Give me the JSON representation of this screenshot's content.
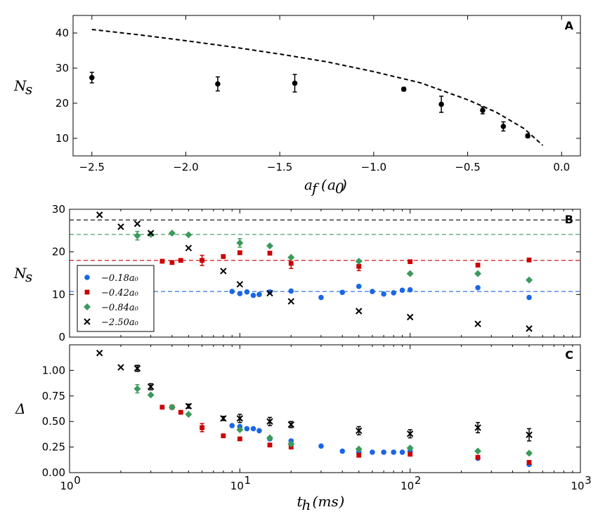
{
  "chart_data": [
    {
      "panel": "A",
      "type": "scatter",
      "xlabel": "a_f (a_0)",
      "ylabel": "N_s",
      "xlim": [
        -2.6,
        0.1
      ],
      "ylim": [
        5,
        45
      ],
      "xticks": [
        -2.5,
        -2.0,
        -1.5,
        -1.0,
        -0.5,
        0.0
      ],
      "xtick_labels": [
        "−2.5",
        "−2.0",
        "−1.5",
        "−1.0",
        "−0.5",
        "0.0"
      ],
      "yticks": [
        10,
        20,
        30,
        40
      ],
      "ytick_labels": [
        "10",
        "20",
        "30",
        "40"
      ],
      "series": [
        {
          "marker": "circle",
          "color": "#000000",
          "points": [
            {
              "x": -2.5,
              "y": 27.3,
              "err": 1.5
            },
            {
              "x": -1.83,
              "y": 25.5,
              "err": 2.0
            },
            {
              "x": -1.42,
              "y": 25.7,
              "err": 2.5
            },
            {
              "x": -0.84,
              "y": 24.0,
              "err": 0.5
            },
            {
              "x": -0.64,
              "y": 19.7,
              "err": 2.3
            },
            {
              "x": -0.42,
              "y": 18.0,
              "err": 1.0
            },
            {
              "x": -0.31,
              "y": 13.4,
              "err": 1.3
            },
            {
              "x": -0.18,
              "y": 10.7,
              "err": 0.5
            }
          ]
        }
      ],
      "fit_line": {
        "style": "dashed",
        "color": "#000000",
        "x": [
          -2.5,
          -2.25,
          -2.0,
          -1.75,
          -1.5,
          -1.25,
          -1.0,
          -0.75,
          -0.5,
          -0.35,
          -0.2,
          -0.1
        ],
        "y": [
          41.0,
          39.5,
          37.8,
          36.0,
          34.0,
          31.8,
          29.0,
          25.8,
          21.0,
          17.5,
          12.8,
          8.0
        ]
      },
      "grid": false
    },
    {
      "panel": "B",
      "type": "scatter",
      "xlabel": "",
      "ylabel": "N_s",
      "xscale": "log",
      "xlim": [
        1,
        1000
      ],
      "ylim": [
        0,
        30
      ],
      "yticks": [
        0,
        10,
        20,
        30
      ],
      "ytick_labels": [
        "0",
        "10",
        "20",
        "30"
      ],
      "legend_position": "left",
      "hlines": [
        {
          "y": 27.5,
          "color": "#000000"
        },
        {
          "y": 24.1,
          "color": "#3a9a5b"
        },
        {
          "y": 18.0,
          "color": "#cc0000"
        },
        {
          "y": 10.7,
          "color": "#1a66e6"
        }
      ],
      "series": [
        {
          "name": "−0.18a₀",
          "marker": "circle",
          "color": "#1a66e6",
          "points": [
            {
              "x": 9.0,
              "y": 10.7
            },
            {
              "x": 10.0,
              "y": 10.2
            },
            {
              "x": 11.0,
              "y": 10.6
            },
            {
              "x": 12.0,
              "y": 9.8
            },
            {
              "x": 13.0,
              "y": 10.0
            },
            {
              "x": 15.0,
              "y": 10.6
            },
            {
              "x": 20.0,
              "y": 10.8
            },
            {
              "x": 30.0,
              "y": 9.3
            },
            {
              "x": 40.0,
              "y": 10.5
            },
            {
              "x": 50.0,
              "y": 11.9
            },
            {
              "x": 60.0,
              "y": 10.7
            },
            {
              "x": 70.0,
              "y": 10.1
            },
            {
              "x": 80.0,
              "y": 10.4
            },
            {
              "x": 90.0,
              "y": 11.0
            },
            {
              "x": 100.0,
              "y": 11.1
            },
            {
              "x": 250.0,
              "y": 11.6
            },
            {
              "x": 500.0,
              "y": 9.3
            }
          ]
        },
        {
          "name": "−0.42a₀",
          "marker": "square",
          "color": "#cc0000",
          "points": [
            {
              "x": 3.5,
              "y": 17.8
            },
            {
              "x": 4.0,
              "y": 17.5
            },
            {
              "x": 4.5,
              "y": 18.0
            },
            {
              "x": 6.0,
              "y": 18.0,
              "err": 1.2
            },
            {
              "x": 8.0,
              "y": 18.9
            },
            {
              "x": 10.0,
              "y": 19.8
            },
            {
              "x": 15.0,
              "y": 19.7
            },
            {
              "x": 20.0,
              "y": 17.3,
              "err": 1.2
            },
            {
              "x": 50.0,
              "y": 16.6,
              "err": 1.0
            },
            {
              "x": 100.0,
              "y": 17.7
            },
            {
              "x": 250.0,
              "y": 16.9
            },
            {
              "x": 500.0,
              "y": 18.1
            }
          ]
        },
        {
          "name": "−0.84a₀",
          "marker": "diamond",
          "color": "#3a9a5b",
          "points": [
            {
              "x": 2.5,
              "y": 23.8,
              "err": 1.0
            },
            {
              "x": 3.0,
              "y": 24.1
            },
            {
              "x": 4.0,
              "y": 24.4
            },
            {
              "x": 5.0,
              "y": 24.0
            },
            {
              "x": 10.0,
              "y": 22.1,
              "err": 1.0
            },
            {
              "x": 15.0,
              "y": 21.4
            },
            {
              "x": 20.0,
              "y": 18.7
            },
            {
              "x": 50.0,
              "y": 17.8
            },
            {
              "x": 100.0,
              "y": 14.9
            },
            {
              "x": 250.0,
              "y": 14.9
            },
            {
              "x": 500.0,
              "y": 13.4
            }
          ]
        },
        {
          "name": "−2.50a₀",
          "marker": "x",
          "color": "#000000",
          "points": [
            {
              "x": 1.5,
              "y": 28.7
            },
            {
              "x": 2.0,
              "y": 25.9
            },
            {
              "x": 2.5,
              "y": 26.6
            },
            {
              "x": 3.0,
              "y": 24.4
            },
            {
              "x": 5.0,
              "y": 20.9
            },
            {
              "x": 8.0,
              "y": 15.5
            },
            {
              "x": 10.0,
              "y": 12.4
            },
            {
              "x": 15.0,
              "y": 10.3
            },
            {
              "x": 20.0,
              "y": 8.4
            },
            {
              "x": 50.0,
              "y": 6.1
            },
            {
              "x": 100.0,
              "y": 4.7
            },
            {
              "x": 250.0,
              "y": 3.1
            },
            {
              "x": 500.0,
              "y": 2.0
            }
          ]
        }
      ],
      "grid": false
    },
    {
      "panel": "C",
      "type": "scatter",
      "xlabel": "t_h (ms)",
      "ylabel": "Δ",
      "xscale": "log",
      "xlim": [
        1,
        1000
      ],
      "ylim": [
        0,
        1.25
      ],
      "yticks": [
        0.0,
        0.25,
        0.5,
        0.75,
        1.0
      ],
      "ytick_labels": [
        "0.00",
        "0.25",
        "0.50",
        "0.75",
        "1.00"
      ],
      "xticks": [
        1,
        10,
        100,
        1000
      ],
      "xtick_labels": [
        [
          "10",
          "0"
        ],
        [
          "10",
          "1"
        ],
        [
          "10",
          "2"
        ],
        [
          "10",
          "3"
        ]
      ],
      "series": [
        {
          "name": "−0.18a₀",
          "marker": "circle",
          "color": "#1a66e6",
          "points": [
            {
              "x": 9.0,
              "y": 0.46
            },
            {
              "x": 10.0,
              "y": 0.45
            },
            {
              "x": 11.0,
              "y": 0.43
            },
            {
              "x": 12.0,
              "y": 0.43
            },
            {
              "x": 13.0,
              "y": 0.41
            },
            {
              "x": 15.0,
              "y": 0.33
            },
            {
              "x": 20.0,
              "y": 0.31
            },
            {
              "x": 30.0,
              "y": 0.26
            },
            {
              "x": 40.0,
              "y": 0.21
            },
            {
              "x": 50.0,
              "y": 0.2
            },
            {
              "x": 60.0,
              "y": 0.2
            },
            {
              "x": 70.0,
              "y": 0.2
            },
            {
              "x": 80.0,
              "y": 0.2
            },
            {
              "x": 90.0,
              "y": 0.2
            },
            {
              "x": 100.0,
              "y": 0.21
            },
            {
              "x": 250.0,
              "y": 0.14
            },
            {
              "x": 500.0,
              "y": 0.08
            }
          ]
        },
        {
          "name": "−0.42a₀",
          "marker": "square",
          "color": "#cc0000",
          "points": [
            {
              "x": 3.5,
              "y": 0.64
            },
            {
              "x": 4.0,
              "y": 0.64
            },
            {
              "x": 4.5,
              "y": 0.59
            },
            {
              "x": 6.0,
              "y": 0.44,
              "err": 0.04
            },
            {
              "x": 8.0,
              "y": 0.36
            },
            {
              "x": 10.0,
              "y": 0.33
            },
            {
              "x": 15.0,
              "y": 0.27
            },
            {
              "x": 20.0,
              "y": 0.25
            },
            {
              "x": 50.0,
              "y": 0.17
            },
            {
              "x": 100.0,
              "y": 0.18
            },
            {
              "x": 250.0,
              "y": 0.15
            },
            {
              "x": 500.0,
              "y": 0.1
            }
          ]
        },
        {
          "name": "−0.84a₀",
          "marker": "diamond",
          "color": "#3a9a5b",
          "points": [
            {
              "x": 2.5,
              "y": 0.82,
              "err": 0.04
            },
            {
              "x": 3.0,
              "y": 0.76
            },
            {
              "x": 4.0,
              "y": 0.64
            },
            {
              "x": 5.0,
              "y": 0.57
            },
            {
              "x": 10.0,
              "y": 0.42
            },
            {
              "x": 15.0,
              "y": 0.34
            },
            {
              "x": 20.0,
              "y": 0.28
            },
            {
              "x": 50.0,
              "y": 0.23
            },
            {
              "x": 100.0,
              "y": 0.24
            },
            {
              "x": 250.0,
              "y": 0.21
            },
            {
              "x": 500.0,
              "y": 0.19
            }
          ]
        },
        {
          "name": "−2.50a₀",
          "marker": "x",
          "color": "#000000",
          "points": [
            {
              "x": 1.5,
              "y": 1.17
            },
            {
              "x": 2.0,
              "y": 1.03
            },
            {
              "x": 2.5,
              "y": 1.02,
              "err": 0.03
            },
            {
              "x": 3.0,
              "y": 0.84,
              "err": 0.03
            },
            {
              "x": 5.0,
              "y": 0.65,
              "err": 0.02
            },
            {
              "x": 8.0,
              "y": 0.53,
              "err": 0.02
            },
            {
              "x": 10.0,
              "y": 0.53,
              "err": 0.04
            },
            {
              "x": 15.0,
              "y": 0.5,
              "err": 0.04
            },
            {
              "x": 20.0,
              "y": 0.47,
              "err": 0.03
            },
            {
              "x": 50.0,
              "y": 0.41,
              "err": 0.04
            },
            {
              "x": 100.0,
              "y": 0.38,
              "err": 0.04
            },
            {
              "x": 250.0,
              "y": 0.44,
              "err": 0.05
            },
            {
              "x": 500.0,
              "y": 0.37,
              "err": 0.06
            }
          ]
        }
      ],
      "grid": false
    }
  ]
}
